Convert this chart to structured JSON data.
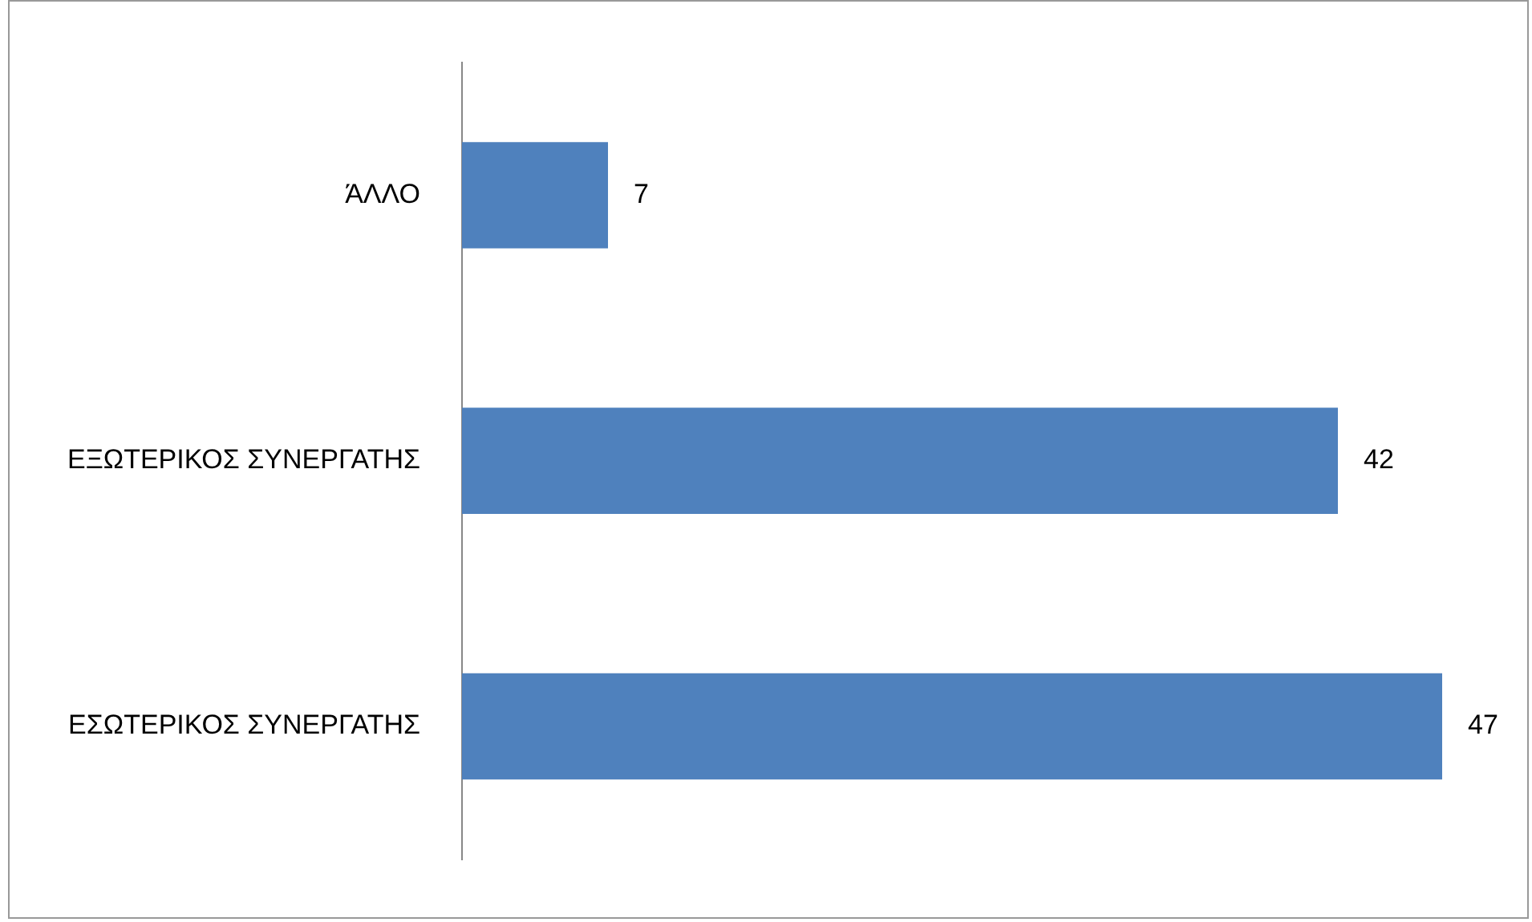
{
  "chart_data": {
    "type": "bar",
    "orientation": "horizontal",
    "categories": [
      "ΆΛΛΟ",
      "ΕΞΩΤΕΡΙΚΟΣ ΣΥΝΕΡΓΑΤΗΣ",
      "ΕΣΩΤΕΡΙΚΟΣ ΣΥΝΕΡΓΑΤΗΣ"
    ],
    "values": [
      7,
      42,
      47
    ],
    "color": "#4f81bd",
    "data_labels": true,
    "grid": false,
    "legend": false
  }
}
